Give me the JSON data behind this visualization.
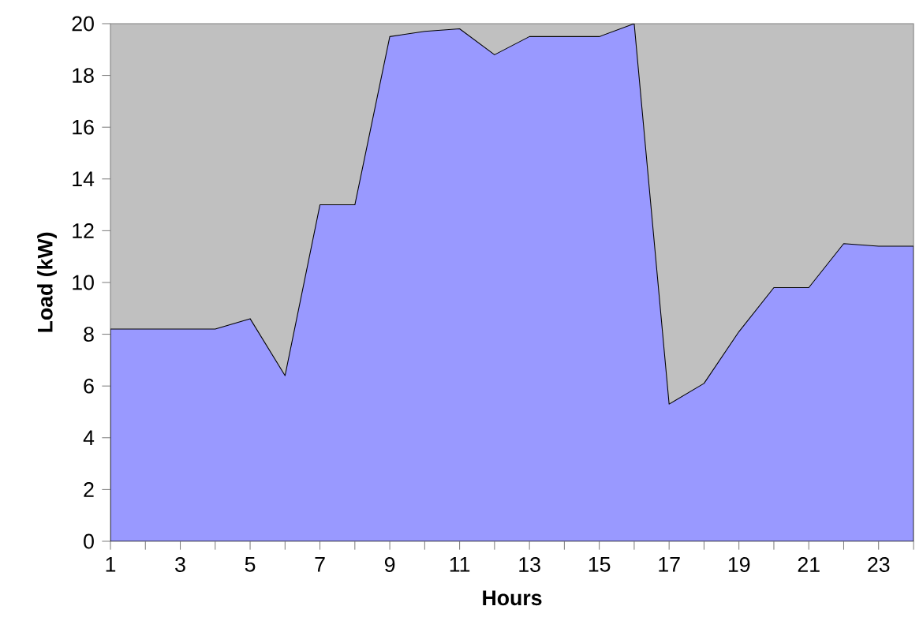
{
  "chart_data": {
    "type": "area",
    "xlabel": "Hours",
    "ylabel": "Load (kW)",
    "x": [
      1,
      2,
      3,
      4,
      5,
      6,
      7,
      8,
      9,
      10,
      11,
      12,
      13,
      14,
      15,
      16,
      17,
      18,
      19,
      20,
      21,
      22,
      23,
      24
    ],
    "series": [
      {
        "color": "#9999ff",
        "values": [
          8.2,
          8.2,
          8.2,
          8.2,
          8.6,
          6.4,
          13.0,
          13.0,
          19.5,
          19.7,
          19.8,
          18.8,
          19.5,
          19.5,
          19.5,
          20.0,
          5.3,
          6.1,
          8.1,
          9.8,
          9.8,
          11.5,
          11.4,
          11.4
        ]
      }
    ],
    "xlim": [
      1,
      24
    ],
    "xticks": [
      1,
      {
        "value": 2,
        "label": null
      },
      3,
      {
        "value": 4,
        "label": null
      },
      5,
      {
        "value": 6,
        "label": null
      },
      7,
      {
        "value": 8,
        "label": null
      },
      9,
      {
        "value": 10,
        "label": null
      },
      11,
      {
        "value": 12,
        "label": null
      },
      13,
      {
        "value": 14,
        "label": null
      },
      15,
      {
        "value": 16,
        "label": null
      },
      17,
      {
        "value": 18,
        "label": null
      },
      19,
      {
        "value": 20,
        "label": null
      },
      21,
      {
        "value": 22,
        "label": null
      },
      23,
      {
        "value": 24,
        "label": null
      }
    ],
    "ylim": [
      0,
      20
    ],
    "yticks": [
      0,
      2,
      4,
      6,
      8,
      10,
      12,
      14,
      16,
      18,
      20
    ],
    "grid": false
  }
}
